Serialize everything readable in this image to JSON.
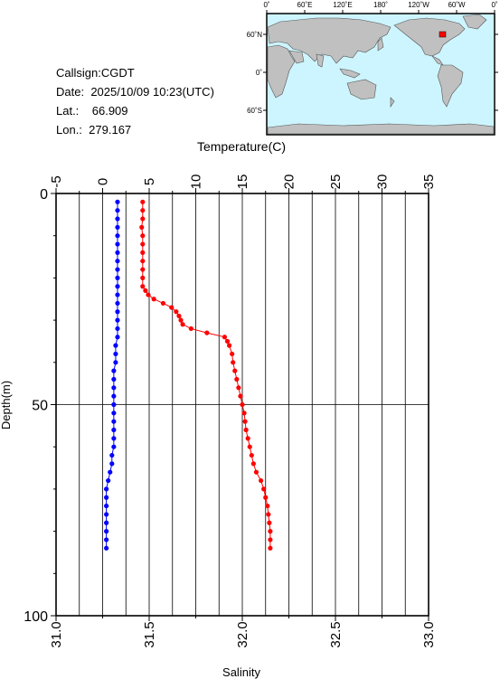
{
  "meta": {
    "callsign_label": "Callsign:",
    "callsign": "CGDT",
    "date_label": "Date:",
    "date": "2025/10/09 10:23(UTC)",
    "lat_label": "Lat.:",
    "lat": "66.909",
    "lon_label": "Lon.:",
    "lon": "279.167"
  },
  "map": {
    "lon_ticks": [
      "0˚",
      "60˚E",
      "120˚E",
      "180˚",
      "120˚W",
      "60˚W",
      "0˚"
    ],
    "lat_ticks": [
      "60˚N",
      "0˚",
      "60˚S"
    ],
    "ocean_color": "#cdf5ff",
    "land_color": "#c0c0c0",
    "marker_color": "#ff0000"
  },
  "chart_data": {
    "type": "scatter",
    "top_axis": {
      "label": "Temperature(C)",
      "range": [
        -5,
        35
      ],
      "ticks": [
        "-5",
        "0",
        "5",
        "10",
        "15",
        "20",
        "25",
        "30",
        "35"
      ]
    },
    "bottom_axis": {
      "label": "Salinity",
      "range": [
        31.0,
        33.0
      ],
      "ticks": [
        "31.0",
        "31.5",
        "32.0",
        "32.5",
        "33.0"
      ]
    },
    "left_axis": {
      "label": "Depth(m)",
      "range": [
        0,
        100
      ],
      "inverted": true,
      "ticks": [
        "0",
        "50",
        "100"
      ]
    },
    "grid": "vertical lines at every 2.5 C; horizontal line at 50 m",
    "series": [
      {
        "axis": "temperature",
        "color": "#ff0000",
        "depth": [
          2,
          4,
          6,
          8,
          10,
          12,
          14,
          16,
          18,
          20,
          22,
          23,
          24,
          25,
          26,
          27,
          28,
          29,
          30,
          31,
          32,
          33,
          34,
          35,
          36,
          38,
          40,
          42,
          44,
          46,
          48,
          50,
          52,
          54,
          56,
          58,
          60,
          62,
          64,
          66,
          68,
          70,
          72,
          74,
          76,
          78,
          80,
          82,
          84
        ],
        "values": [
          4.3,
          4.3,
          4.3,
          4.2,
          4.3,
          4.3,
          4.3,
          4.3,
          4.3,
          4.3,
          4.3,
          4.6,
          4.9,
          5.5,
          6.5,
          7.4,
          7.9,
          8.2,
          8.4,
          8.6,
          9.5,
          11.2,
          13.1,
          13.4,
          13.6,
          13.9,
          14.0,
          14.2,
          14.4,
          14.6,
          14.8,
          15.0,
          15.2,
          15.3,
          15.4,
          15.6,
          15.8,
          16.0,
          16.2,
          16.5,
          17.0,
          17.3,
          17.5,
          17.7,
          17.8,
          17.9,
          18.0,
          18.0,
          18.0
        ]
      },
      {
        "axis": "salinity",
        "color": "#0000ff",
        "depth": [
          2,
          4,
          6,
          8,
          10,
          12,
          14,
          16,
          18,
          20,
          22,
          24,
          26,
          28,
          30,
          32,
          34,
          36,
          38,
          40,
          42,
          44,
          46,
          48,
          50,
          52,
          54,
          56,
          58,
          60,
          62,
          64,
          66,
          68,
          70,
          72,
          74,
          76,
          78,
          80,
          82,
          84
        ],
        "values": [
          31.33,
          31.33,
          31.33,
          31.33,
          31.33,
          31.33,
          31.33,
          31.33,
          31.33,
          31.33,
          31.33,
          31.33,
          31.33,
          31.33,
          31.33,
          31.33,
          31.33,
          31.32,
          31.32,
          31.32,
          31.31,
          31.31,
          31.31,
          31.31,
          31.31,
          31.31,
          31.31,
          31.31,
          31.31,
          31.31,
          31.3,
          31.3,
          31.29,
          31.28,
          31.27,
          31.27,
          31.27,
          31.27,
          31.27,
          31.27,
          31.27,
          31.27
        ]
      }
    ]
  }
}
